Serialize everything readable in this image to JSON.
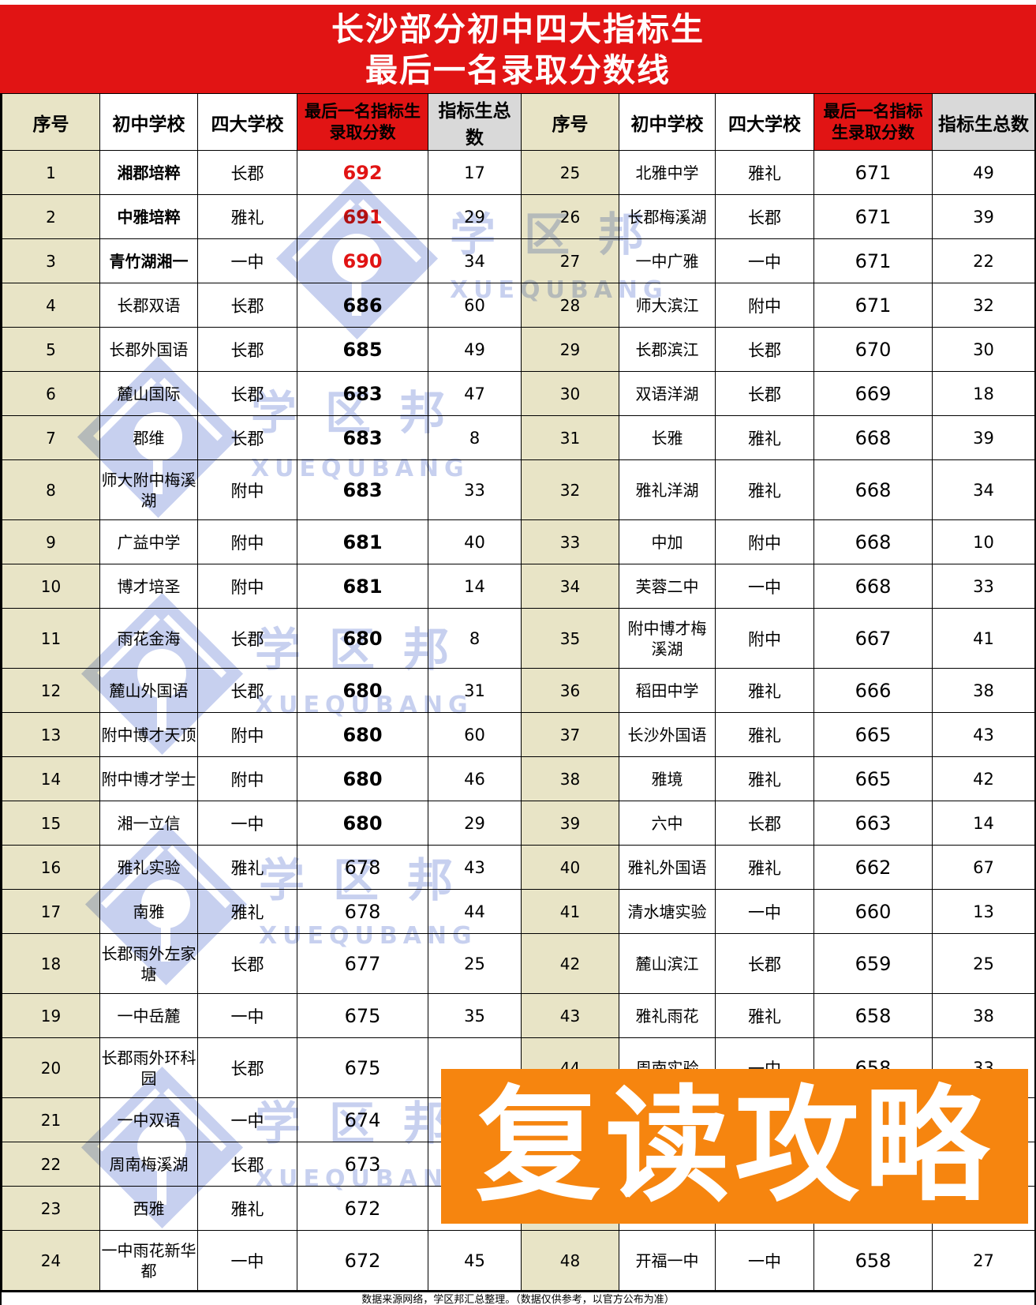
{
  "title": {
    "line1": "长沙部分初中四大指标生",
    "line2": "最后一名录取分数线"
  },
  "colors": {
    "red": "#e11414",
    "beige": "#e8e4c6",
    "gray": "#d9d9d9",
    "orange": "#f6850f",
    "watermark_blue": "#8fa2e0"
  },
  "watermark": {
    "brand": "学区邦",
    "brand_latin": "XUEQUBANG"
  },
  "banner": {
    "text": "复读攻略"
  },
  "footer": {
    "text": "数据来源网络，学区邦汇总整理。（数据仅供参考，以官方公布为准）"
  },
  "table": {
    "columns": [
      "序号",
      "初中学校",
      "四大学校",
      "最后一名指标生录取分数",
      "指标生总数"
    ],
    "tall_rows": [
      8,
      11,
      18,
      20,
      24
    ],
    "left_rows": [
      {
        "no": "1",
        "school": "湘郡培粹",
        "type": "长郡",
        "score": "692",
        "total": "17",
        "school_bold": true,
        "score_class": "bold red"
      },
      {
        "no": "2",
        "school": "中雅培粹",
        "type": "雅礼",
        "score": "691",
        "total": "29",
        "school_bold": true,
        "score_class": "bold red"
      },
      {
        "no": "3",
        "school": "青竹湖湘一",
        "type": "一中",
        "score": "690",
        "total": "34",
        "school_bold": true,
        "score_class": "bold red"
      },
      {
        "no": "4",
        "school": "长郡双语",
        "type": "长郡",
        "score": "686",
        "total": "60",
        "school_bold": false,
        "score_class": "bold"
      },
      {
        "no": "5",
        "school": "长郡外国语",
        "type": "长郡",
        "score": "685",
        "total": "49",
        "school_bold": false,
        "score_class": "bold"
      },
      {
        "no": "6",
        "school": "麓山国际",
        "type": "长郡",
        "score": "683",
        "total": "47",
        "school_bold": false,
        "score_class": "bold"
      },
      {
        "no": "7",
        "school": "郡维",
        "type": "长郡",
        "score": "683",
        "total": "8",
        "school_bold": false,
        "score_class": "bold"
      },
      {
        "no": "8",
        "school": "师大附中梅溪湖",
        "type": "附中",
        "score": "683",
        "total": "33",
        "school_bold": false,
        "score_class": "bold"
      },
      {
        "no": "9",
        "school": "广益中学",
        "type": "附中",
        "score": "681",
        "total": "40",
        "school_bold": false,
        "score_class": "bold"
      },
      {
        "no": "10",
        "school": "博才培圣",
        "type": "附中",
        "score": "681",
        "total": "14",
        "school_bold": false,
        "score_class": "bold"
      },
      {
        "no": "11",
        "school": "雨花金海",
        "type": "长郡",
        "score": "680",
        "total": "8",
        "school_bold": false,
        "score_class": "bold"
      },
      {
        "no": "12",
        "school": "麓山外国语",
        "type": "长郡",
        "score": "680",
        "total": "31",
        "school_bold": false,
        "score_class": "bold"
      },
      {
        "no": "13",
        "school": "附中博才天顶",
        "type": "附中",
        "score": "680",
        "total": "60",
        "school_bold": false,
        "score_class": "bold"
      },
      {
        "no": "14",
        "school": "附中博才学士",
        "type": "附中",
        "score": "680",
        "total": "46",
        "school_bold": false,
        "score_class": "bold"
      },
      {
        "no": "15",
        "school": "湘一立信",
        "type": "一中",
        "score": "680",
        "total": "29",
        "school_bold": false,
        "score_class": "bold"
      },
      {
        "no": "16",
        "school": "雅礼实验",
        "type": "雅礼",
        "score": "678",
        "total": "43",
        "school_bold": false,
        "score_class": ""
      },
      {
        "no": "17",
        "school": "南雅",
        "type": "雅礼",
        "score": "678",
        "total": "44",
        "school_bold": false,
        "score_class": ""
      },
      {
        "no": "18",
        "school": "长郡雨外左家塘",
        "type": "长郡",
        "score": "677",
        "total": "25",
        "school_bold": false,
        "score_class": ""
      },
      {
        "no": "19",
        "school": "一中岳麓",
        "type": "一中",
        "score": "675",
        "total": "35",
        "school_bold": false,
        "score_class": ""
      },
      {
        "no": "20",
        "school": "长郡雨外环科园",
        "type": "长郡",
        "score": "675",
        "total": "",
        "school_bold": false,
        "score_class": ""
      },
      {
        "no": "21",
        "school": "一中双语",
        "type": "一中",
        "score": "674",
        "total": "",
        "school_bold": false,
        "score_class": ""
      },
      {
        "no": "22",
        "school": "周南梅溪湖",
        "type": "长郡",
        "score": "673",
        "total": "",
        "school_bold": false,
        "score_class": ""
      },
      {
        "no": "23",
        "school": "西雅",
        "type": "雅礼",
        "score": "672",
        "total": "",
        "school_bold": false,
        "score_class": ""
      },
      {
        "no": "24",
        "school": "一中雨花新华都",
        "type": "一中",
        "score": "672",
        "total": "45",
        "school_bold": false,
        "score_class": ""
      }
    ],
    "right_rows": [
      {
        "no": "25",
        "school": "北雅中学",
        "type": "雅礼",
        "score": "671",
        "total": "49",
        "school_bold": false,
        "score_class": ""
      },
      {
        "no": "26",
        "school": "长郡梅溪湖",
        "type": "长郡",
        "score": "671",
        "total": "39",
        "school_bold": false,
        "score_class": ""
      },
      {
        "no": "27",
        "school": "一中广雅",
        "type": "一中",
        "score": "671",
        "total": "22",
        "school_bold": false,
        "score_class": ""
      },
      {
        "no": "28",
        "school": "师大滨江",
        "type": "附中",
        "score": "671",
        "total": "32",
        "school_bold": false,
        "score_class": ""
      },
      {
        "no": "29",
        "school": "长郡滨江",
        "type": "长郡",
        "score": "670",
        "total": "30",
        "school_bold": false,
        "score_class": ""
      },
      {
        "no": "30",
        "school": "双语洋湖",
        "type": "长郡",
        "score": "669",
        "total": "18",
        "school_bold": false,
        "score_class": ""
      },
      {
        "no": "31",
        "school": "长雅",
        "type": "雅礼",
        "score": "668",
        "total": "39",
        "school_bold": false,
        "score_class": ""
      },
      {
        "no": "32",
        "school": "雅礼洋湖",
        "type": "雅礼",
        "score": "668",
        "total": "34",
        "school_bold": false,
        "score_class": ""
      },
      {
        "no": "33",
        "school": "中加",
        "type": "附中",
        "score": "668",
        "total": "10",
        "school_bold": false,
        "score_class": ""
      },
      {
        "no": "34",
        "school": "芙蓉二中",
        "type": "一中",
        "score": "668",
        "total": "33",
        "school_bold": false,
        "score_class": ""
      },
      {
        "no": "35",
        "school": "附中博才梅溪湖",
        "type": "附中",
        "score": "667",
        "total": "41",
        "school_bold": false,
        "score_class": ""
      },
      {
        "no": "36",
        "school": "稻田中学",
        "type": "雅礼",
        "score": "666",
        "total": "38",
        "school_bold": false,
        "score_class": ""
      },
      {
        "no": "37",
        "school": "长沙外国语",
        "type": "雅礼",
        "score": "665",
        "total": "43",
        "school_bold": false,
        "score_class": ""
      },
      {
        "no": "38",
        "school": "雅境",
        "type": "雅礼",
        "score": "665",
        "total": "42",
        "school_bold": false,
        "score_class": ""
      },
      {
        "no": "39",
        "school": "六中",
        "type": "长郡",
        "score": "663",
        "total": "14",
        "school_bold": false,
        "score_class": ""
      },
      {
        "no": "40",
        "school": "雅礼外国语",
        "type": "雅礼",
        "score": "662",
        "total": "67",
        "school_bold": false,
        "score_class": ""
      },
      {
        "no": "41",
        "school": "清水塘实验",
        "type": "一中",
        "score": "660",
        "total": "13",
        "school_bold": false,
        "score_class": ""
      },
      {
        "no": "42",
        "school": "麓山滨江",
        "type": "长郡",
        "score": "659",
        "total": "25",
        "school_bold": false,
        "score_class": ""
      },
      {
        "no": "43",
        "school": "雅礼雨花",
        "type": "雅礼",
        "score": "658",
        "total": "38",
        "school_bold": false,
        "score_class": ""
      },
      {
        "no": "44",
        "school": "周南实验",
        "type": "一中",
        "score": "658",
        "total": "33",
        "school_bold": false,
        "score_class": ""
      },
      {
        "no": "",
        "school": "",
        "type": "",
        "score": "",
        "total": "",
        "school_bold": false,
        "score_class": ""
      },
      {
        "no": "",
        "school": "",
        "type": "",
        "score": "",
        "total": "",
        "school_bold": false,
        "score_class": ""
      },
      {
        "no": "",
        "school": "",
        "type": "",
        "score": "",
        "total": "",
        "school_bold": false,
        "score_class": ""
      },
      {
        "no": "48",
        "school": "开福一中",
        "type": "一中",
        "score": "658",
        "total": "27",
        "school_bold": false,
        "score_class": ""
      }
    ]
  }
}
